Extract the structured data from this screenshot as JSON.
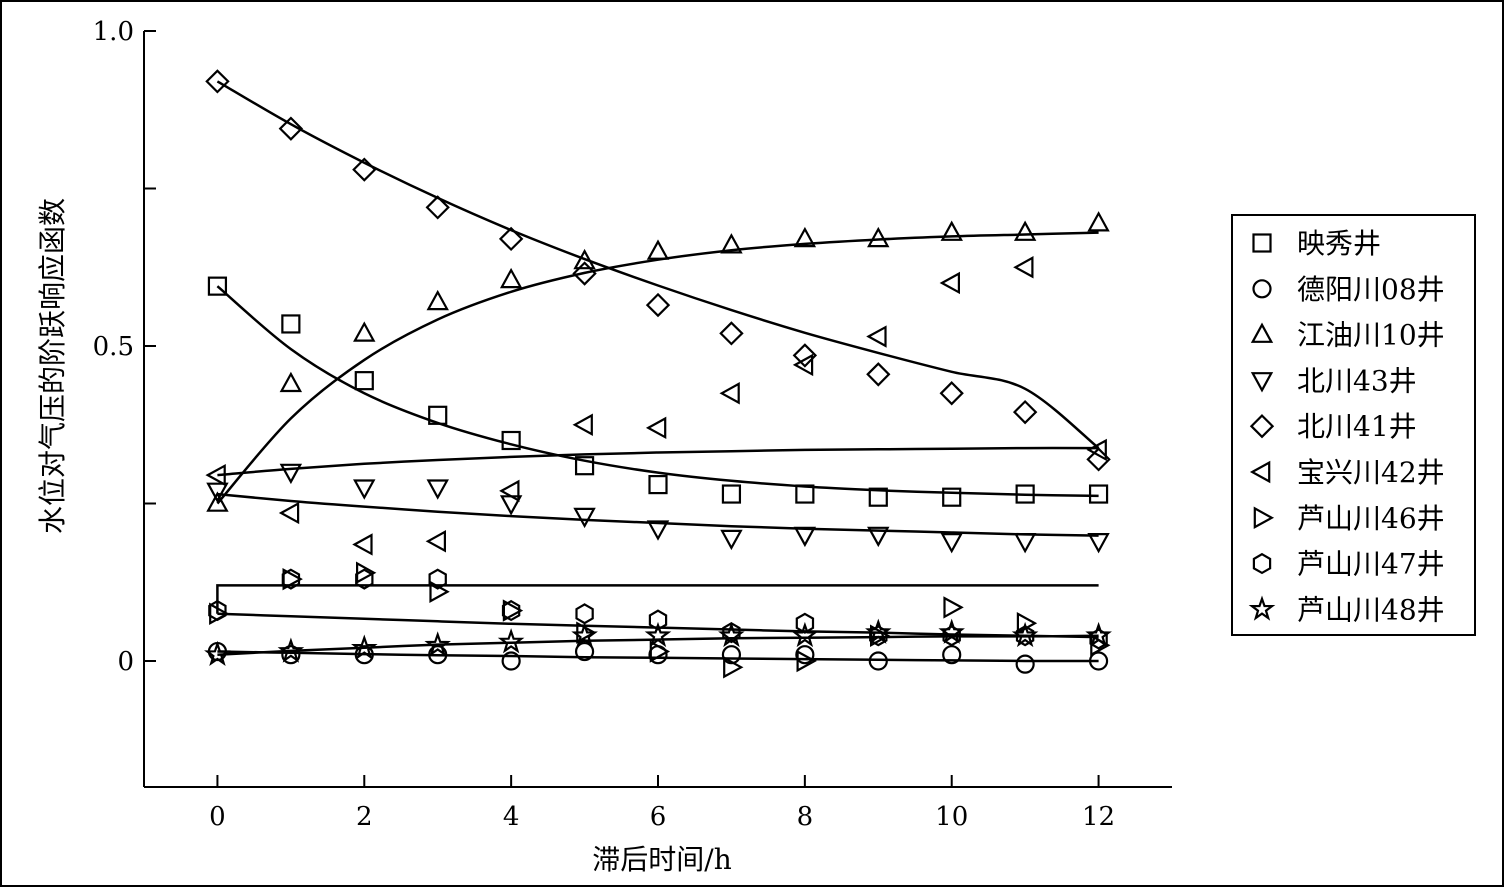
{
  "chart_data": {
    "type": "scatter",
    "title": "",
    "xlabel": "滞后时间/h",
    "ylabel": "水位对气压的阶跃响应函数",
    "xlim": [
      -1,
      13.0
    ],
    "ylim": [
      -0.2,
      1.0
    ],
    "xticks": [
      0,
      2,
      4,
      6,
      8,
      10,
      12
    ],
    "yticks": [
      0,
      0.25,
      0.5,
      0.75,
      1.0
    ],
    "ytick_labels": [
      "0",
      "",
      "0.5",
      "",
      "1.0"
    ],
    "legend_position": "right",
    "grid": false,
    "x": [
      0,
      1,
      2,
      3,
      4,
      5,
      6,
      7,
      8,
      9,
      10,
      11,
      12
    ],
    "series": [
      {
        "name": "映秀井",
        "marker": "square",
        "values": [
          0.595,
          0.535,
          0.445,
          0.39,
          0.35,
          0.31,
          0.28,
          0.265,
          0.265,
          0.26,
          0.26,
          0.265,
          0.265
        ],
        "fit": [
          0.595,
          0.495,
          0.425,
          0.378,
          0.344,
          0.318,
          0.299,
          0.286,
          0.277,
          0.271,
          0.267,
          0.264,
          0.262
        ]
      },
      {
        "name": "德阳川08井",
        "marker": "circle",
        "values": [
          0.015,
          0.01,
          0.01,
          0.01,
          0.0,
          0.015,
          0.01,
          0.01,
          0.01,
          0.0,
          0.01,
          -0.005,
          0.0
        ],
        "fit": [
          0.015,
          0.013,
          0.011,
          0.009,
          0.008,
          0.006,
          0.005,
          0.004,
          0.003,
          0.002,
          0.001,
          0.0,
          0.0
        ]
      },
      {
        "name": "江油川10井",
        "marker": "triangle-up",
        "values": [
          0.25,
          0.44,
          0.52,
          0.57,
          0.605,
          0.635,
          0.65,
          0.66,
          0.67,
          0.67,
          0.68,
          0.68,
          0.695
        ],
        "fit": [
          0.25,
          0.385,
          0.478,
          0.542,
          0.586,
          0.616,
          0.637,
          0.652,
          0.662,
          0.669,
          0.674,
          0.677,
          0.68
        ]
      },
      {
        "name": "北川43井",
        "marker": "triangle-down",
        "values": [
          0.27,
          0.3,
          0.275,
          0.275,
          0.25,
          0.23,
          0.21,
          0.195,
          0.2,
          0.2,
          0.19,
          0.19,
          0.19
        ],
        "fit": [
          0.265,
          0.254,
          0.245,
          0.237,
          0.23,
          0.224,
          0.219,
          0.214,
          0.21,
          0.207,
          0.204,
          0.201,
          0.199
        ]
      },
      {
        "name": "北川41井",
        "marker": "diamond",
        "values": [
          0.92,
          0.845,
          0.78,
          0.72,
          0.67,
          0.615,
          0.565,
          0.52,
          0.485,
          0.455,
          0.425,
          0.395,
          0.32
        ],
        "fit": [
          0.92,
          0.852,
          0.791,
          0.735,
          0.684,
          0.638,
          0.596,
          0.557,
          0.521,
          0.489,
          0.459,
          0.432,
          0.338
        ]
      },
      {
        "name": "宝兴川42井",
        "marker": "triangle-left",
        "values": [
          0.295,
          0.235,
          0.185,
          0.19,
          0.27,
          0.375,
          0.37,
          0.425,
          0.47,
          0.515,
          0.6,
          0.625,
          0.335
        ],
        "fit": [
          0.295,
          0.305,
          0.313,
          0.319,
          0.324,
          0.328,
          0.331,
          0.333,
          0.335,
          0.336,
          0.337,
          0.338,
          0.338
        ]
      },
      {
        "name": "芦山川46井",
        "marker": "triangle-right",
        "values": [
          0.075,
          0.13,
          0.14,
          0.11,
          0.08,
          0.045,
          0.015,
          -0.01,
          0.0,
          0.04,
          0.085,
          0.06,
          0.025
        ],
        "fit": [
          0.075,
          0.12,
          0.12,
          0.12,
          0.12,
          0.12,
          0.12,
          0.12,
          0.12,
          0.12,
          0.12,
          0.12,
          0.12
        ]
      },
      {
        "name": "芦山川47井",
        "marker": "hexagon",
        "values": [
          0.08,
          0.13,
          0.13,
          0.13,
          0.08,
          0.075,
          0.065,
          0.045,
          0.06,
          0.04,
          0.04,
          0.04,
          0.035
        ],
        "fit": [
          0.075,
          0.071,
          0.067,
          0.063,
          0.059,
          0.056,
          0.053,
          0.05,
          0.047,
          0.045,
          0.042,
          0.04,
          0.038
        ]
      },
      {
        "name": "芦山川48井",
        "marker": "star",
        "values": [
          0.01,
          0.015,
          0.02,
          0.025,
          0.03,
          0.04,
          0.04,
          0.04,
          0.04,
          0.045,
          0.045,
          0.04,
          0.04
        ],
        "fit": [
          0.01,
          0.016,
          0.021,
          0.026,
          0.029,
          0.032,
          0.034,
          0.036,
          0.037,
          0.038,
          0.039,
          0.039,
          0.04
        ]
      }
    ]
  }
}
